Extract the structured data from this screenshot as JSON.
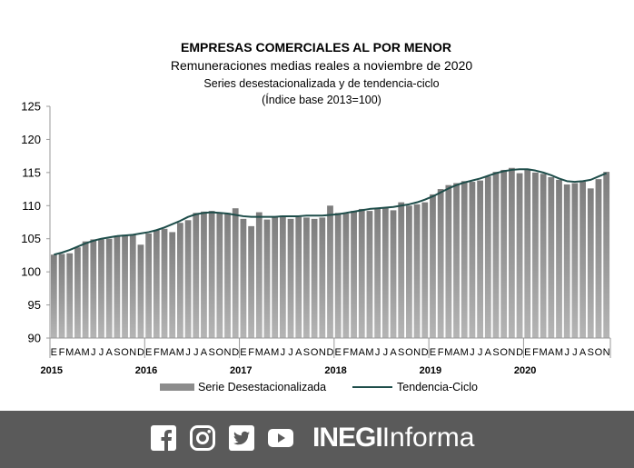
{
  "chart_data": {
    "type": "bar",
    "title": "EMPRESAS COMERCIALES AL POR MENOR",
    "subtitle": "Remuneraciones medias reales a noviembre de 2020",
    "subtitle2": "Series desestacionalizada y de tendencia-ciclo",
    "subtitle3": "(Índice base 2013=100)",
    "ylim": [
      90,
      125
    ],
    "yticks": [
      90,
      95,
      100,
      105,
      110,
      115,
      120,
      125
    ],
    "grid": false,
    "legend_position": "bottom",
    "year_labels": [
      "2015",
      "2016",
      "2017",
      "2018",
      "2019",
      "2020"
    ],
    "categories": [
      "E",
      "F",
      "M",
      "A",
      "M",
      "J",
      "J",
      "A",
      "S",
      "O",
      "N",
      "D",
      "E",
      "F",
      "M",
      "A",
      "M",
      "J",
      "J",
      "A",
      "S",
      "O",
      "N",
      "D",
      "E",
      "F",
      "M",
      "A",
      "M",
      "J",
      "J",
      "A",
      "S",
      "O",
      "N",
      "D",
      "E",
      "F",
      "M",
      "A",
      "M",
      "J",
      "J",
      "A",
      "S",
      "O",
      "N",
      "D",
      "E",
      "F",
      "M",
      "A",
      "M",
      "J",
      "J",
      "A",
      "S",
      "O",
      "N",
      "D",
      "E",
      "F",
      "M",
      "A",
      "M",
      "J",
      "J",
      "A",
      "S",
      "O",
      "N"
    ],
    "series": [
      {
        "name": "Serie Desestacionalizada",
        "type": "bar",
        "color": "#8c8c8c",
        "values": [
          102.6,
          102.7,
          102.8,
          103.7,
          104.6,
          104.9,
          104.9,
          105.0,
          105.3,
          105.6,
          105.6,
          104.1,
          105.8,
          106.3,
          106.5,
          106.0,
          107.4,
          107.8,
          108.9,
          109.1,
          109.2,
          108.9,
          108.9,
          109.6,
          108.0,
          106.9,
          109.0,
          107.9,
          108.3,
          108.5,
          108.0,
          108.3,
          108.2,
          108.0,
          108.2,
          110.0,
          108.9,
          108.8,
          109.2,
          109.5,
          109.2,
          109.6,
          109.7,
          109.3,
          110.5,
          110.0,
          110.2,
          110.5,
          111.7,
          112.5,
          113.1,
          113.4,
          113.7,
          113.6,
          113.8,
          114.4,
          115.1,
          115.4,
          115.7,
          114.9,
          115.5,
          115.0,
          114.8,
          114.3,
          113.9,
          113.2,
          113.4,
          113.6,
          112.6,
          114.0,
          115.1
        ]
      },
      {
        "name": "Tendencia-Ciclo",
        "type": "line",
        "color": "#1e4d4a",
        "values": [
          102.6,
          102.9,
          103.3,
          103.8,
          104.3,
          104.7,
          105.0,
          105.2,
          105.4,
          105.5,
          105.6,
          105.8,
          106.0,
          106.3,
          106.7,
          107.2,
          107.7,
          108.3,
          108.7,
          108.9,
          109.0,
          108.9,
          108.8,
          108.6,
          108.4,
          108.3,
          108.3,
          108.3,
          108.3,
          108.4,
          108.4,
          108.4,
          108.5,
          108.5,
          108.5,
          108.6,
          108.7,
          108.9,
          109.1,
          109.3,
          109.5,
          109.6,
          109.7,
          109.8,
          110.0,
          110.2,
          110.5,
          110.9,
          111.4,
          112.0,
          112.6,
          113.1,
          113.5,
          113.8,
          114.1,
          114.5,
          114.9,
          115.2,
          115.4,
          115.5,
          115.5,
          115.3,
          115.0,
          114.6,
          114.1,
          113.7,
          113.6,
          113.7,
          113.9,
          114.4,
          114.9
        ]
      }
    ]
  },
  "footer": {
    "brand_bold": "INEGI",
    "brand_light": "Informa",
    "icons": [
      "facebook-icon",
      "instagram-icon",
      "twitter-icon",
      "youtube-icon"
    ]
  }
}
